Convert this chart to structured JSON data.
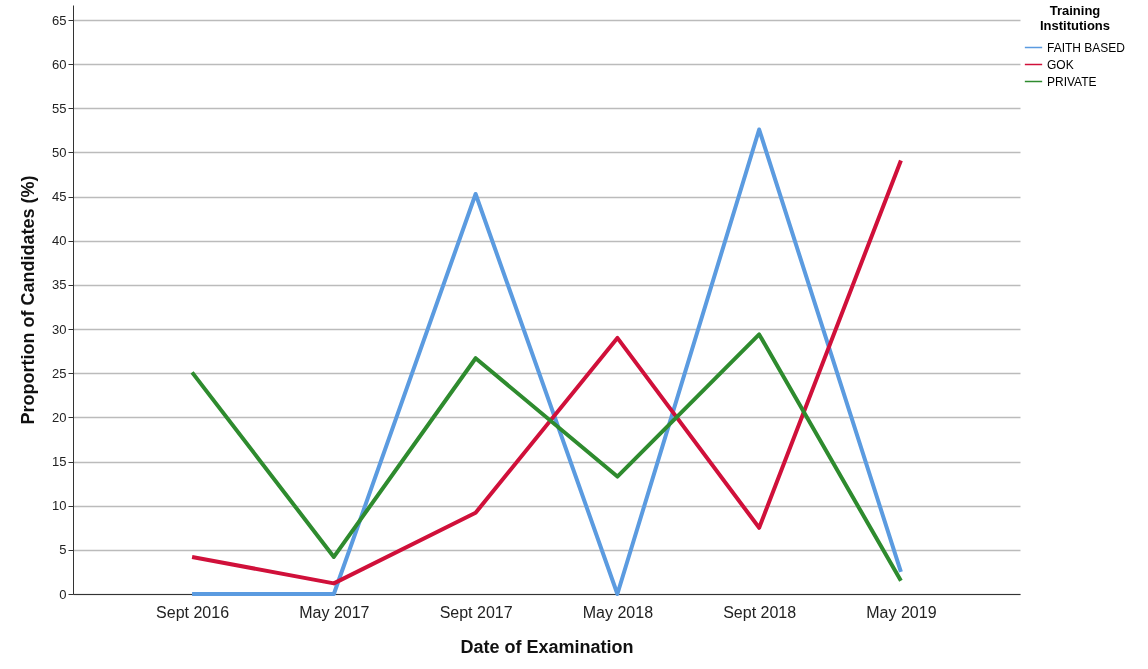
{
  "chart_data": {
    "type": "line",
    "xlabel": "Date of Examination",
    "ylabel": "Proportion of Candidates (%)",
    "legend_title": "Training Institutions",
    "categories": [
      "Sept 2016",
      "May 2017",
      "Sept 2017",
      "May 2018",
      "Sept 2018",
      "May 2019"
    ],
    "series": [
      {
        "name": "FAITH BASED",
        "color": "#5b9be0",
        "values": [
          0,
          0,
          45.3,
          0,
          52.6,
          2.5
        ]
      },
      {
        "name": "GOK",
        "color": "#d0103a",
        "values": [
          4.2,
          1.2,
          9.2,
          29.0,
          7.5,
          49.1
        ]
      },
      {
        "name": "PRIVATE",
        "color": "#2e8b2e",
        "values": [
          25.1,
          4.2,
          26.7,
          13.3,
          29.4,
          1.5
        ]
      }
    ],
    "ylim": [
      0,
      66.7
    ],
    "yticks": [
      0,
      5,
      10,
      15,
      20,
      25,
      30,
      35,
      40,
      45,
      50,
      55,
      60,
      65
    ],
    "grid": "y",
    "legend": "top right",
    "marker": "none",
    "line_style": "solid"
  }
}
